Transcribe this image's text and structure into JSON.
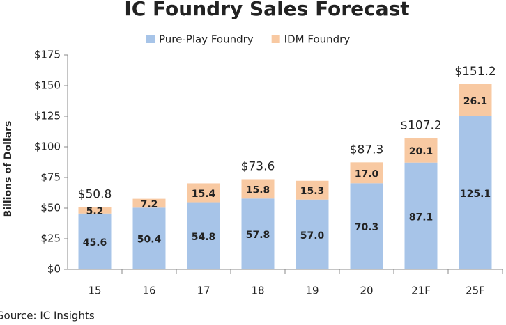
{
  "chart_data": {
    "type": "stacked-bar",
    "title": "IC Foundry Sales Forecast",
    "y_axis_label": "Billions of Dollars",
    "source": "Source:  IC Insights",
    "categories": [
      "15",
      "16",
      "17",
      "18",
      "19",
      "20",
      "21F",
      "25F"
    ],
    "series": [
      {
        "name": "Pure-Play Foundry",
        "color": "#a7c4e8",
        "values": [
          45.6,
          50.4,
          54.8,
          57.8,
          57.0,
          70.3,
          87.1,
          125.1
        ],
        "value_labels": [
          "45.6",
          "50.4",
          "54.8",
          "57.8",
          "57.0",
          "70.3",
          "87.1",
          "125.1"
        ]
      },
      {
        "name": "IDM Foundry",
        "color": "#f8c9a2",
        "values": [
          5.2,
          7.2,
          15.4,
          15.8,
          15.3,
          17.0,
          20.1,
          26.1
        ],
        "value_labels": [
          "5.2",
          "7.2",
          "15.4",
          "15.8",
          "15.3",
          "17.0",
          "20.1",
          "26.1"
        ]
      }
    ],
    "totals": {
      "values": [
        50.8,
        null,
        null,
        73.6,
        null,
        87.3,
        107.2,
        151.2
      ],
      "value_labels": [
        "$50.8",
        null,
        null,
        "$73.6",
        null,
        "$87.3",
        "$107.2",
        "$151.2"
      ]
    },
    "ylim": [
      0,
      175
    ],
    "yticks": [
      {
        "value": 0,
        "label": "$0"
      },
      {
        "value": 25,
        "label": "$25"
      },
      {
        "value": 50,
        "label": "$50"
      },
      {
        "value": 75,
        "label": "$75"
      },
      {
        "value": 100,
        "label": "$100"
      },
      {
        "value": 125,
        "label": "$125"
      },
      {
        "value": 150,
        "label": "$150"
      },
      {
        "value": 175,
        "label": "$175"
      }
    ],
    "grid": false,
    "legend": "top"
  }
}
